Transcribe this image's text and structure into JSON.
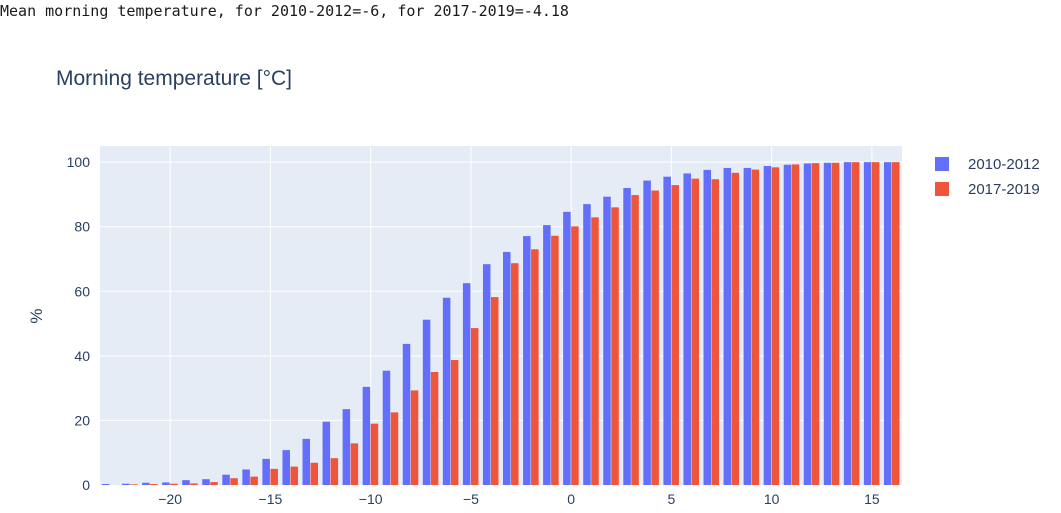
{
  "header": {
    "stat_line": "Mean morning temperature, for 2010-2012=-6, for 2017-2019=-4.18"
  },
  "colors": {
    "plot_bg": "#e5ecf6",
    "grid": "#ffffff",
    "series_1": "#636efa",
    "series_2": "#ef553b",
    "text": "#2a3f5f"
  },
  "chart_data": {
    "type": "bar",
    "title": "Morning temperature [°C]",
    "xlabel": "",
    "ylabel": "%",
    "xlim": [
      -23.5,
      16.5
    ],
    "ylim": [
      0,
      105
    ],
    "xticks": [
      -20,
      -15,
      -10,
      -5,
      0,
      5,
      10,
      15
    ],
    "yticks": [
      0,
      20,
      40,
      60,
      80,
      100
    ],
    "grid": true,
    "legend_position": "top-right",
    "x": [
      -23,
      -22,
      -21,
      -20,
      -19,
      -18,
      -17,
      -16,
      -15,
      -14,
      -13,
      -12,
      -11,
      -10,
      -9,
      -8,
      -7,
      -6,
      -5,
      -4,
      -3,
      -2,
      -1,
      0,
      1,
      2,
      3,
      4,
      5,
      6,
      7,
      8,
      9,
      10,
      11,
      12,
      13,
      14,
      15,
      16
    ],
    "series": [
      {
        "name": "2010-2012",
        "color": "#636efa",
        "values": [
          0.3,
          0.4,
          0.7,
          0.8,
          1.5,
          1.8,
          3.2,
          4.8,
          8.1,
          10.8,
          14.3,
          19.6,
          23.5,
          30.4,
          35.4,
          43.7,
          51.2,
          58.0,
          62.5,
          68.4,
          72.2,
          77.1,
          80.5,
          84.6,
          87.0,
          89.3,
          92.0,
          94.3,
          95.5,
          96.5,
          97.6,
          98.2,
          98.2,
          98.8,
          99.2,
          99.6,
          99.8,
          100,
          100,
          100
        ]
      },
      {
        "name": "2017-2019",
        "color": "#ef553b",
        "values": [
          0,
          0.2,
          0.3,
          0.4,
          0.5,
          0.9,
          2.1,
          2.6,
          5.0,
          5.7,
          6.9,
          8.3,
          12.9,
          19.0,
          22.5,
          29.3,
          35.0,
          38.7,
          48.6,
          58.2,
          68.7,
          73.0,
          77.2,
          80.1,
          82.9,
          86.0,
          89.8,
          91.2,
          92.9,
          94.9,
          94.7,
          96.7,
          97.7,
          98.4,
          99.3,
          99.7,
          99.8,
          100,
          100,
          100
        ]
      }
    ]
  }
}
